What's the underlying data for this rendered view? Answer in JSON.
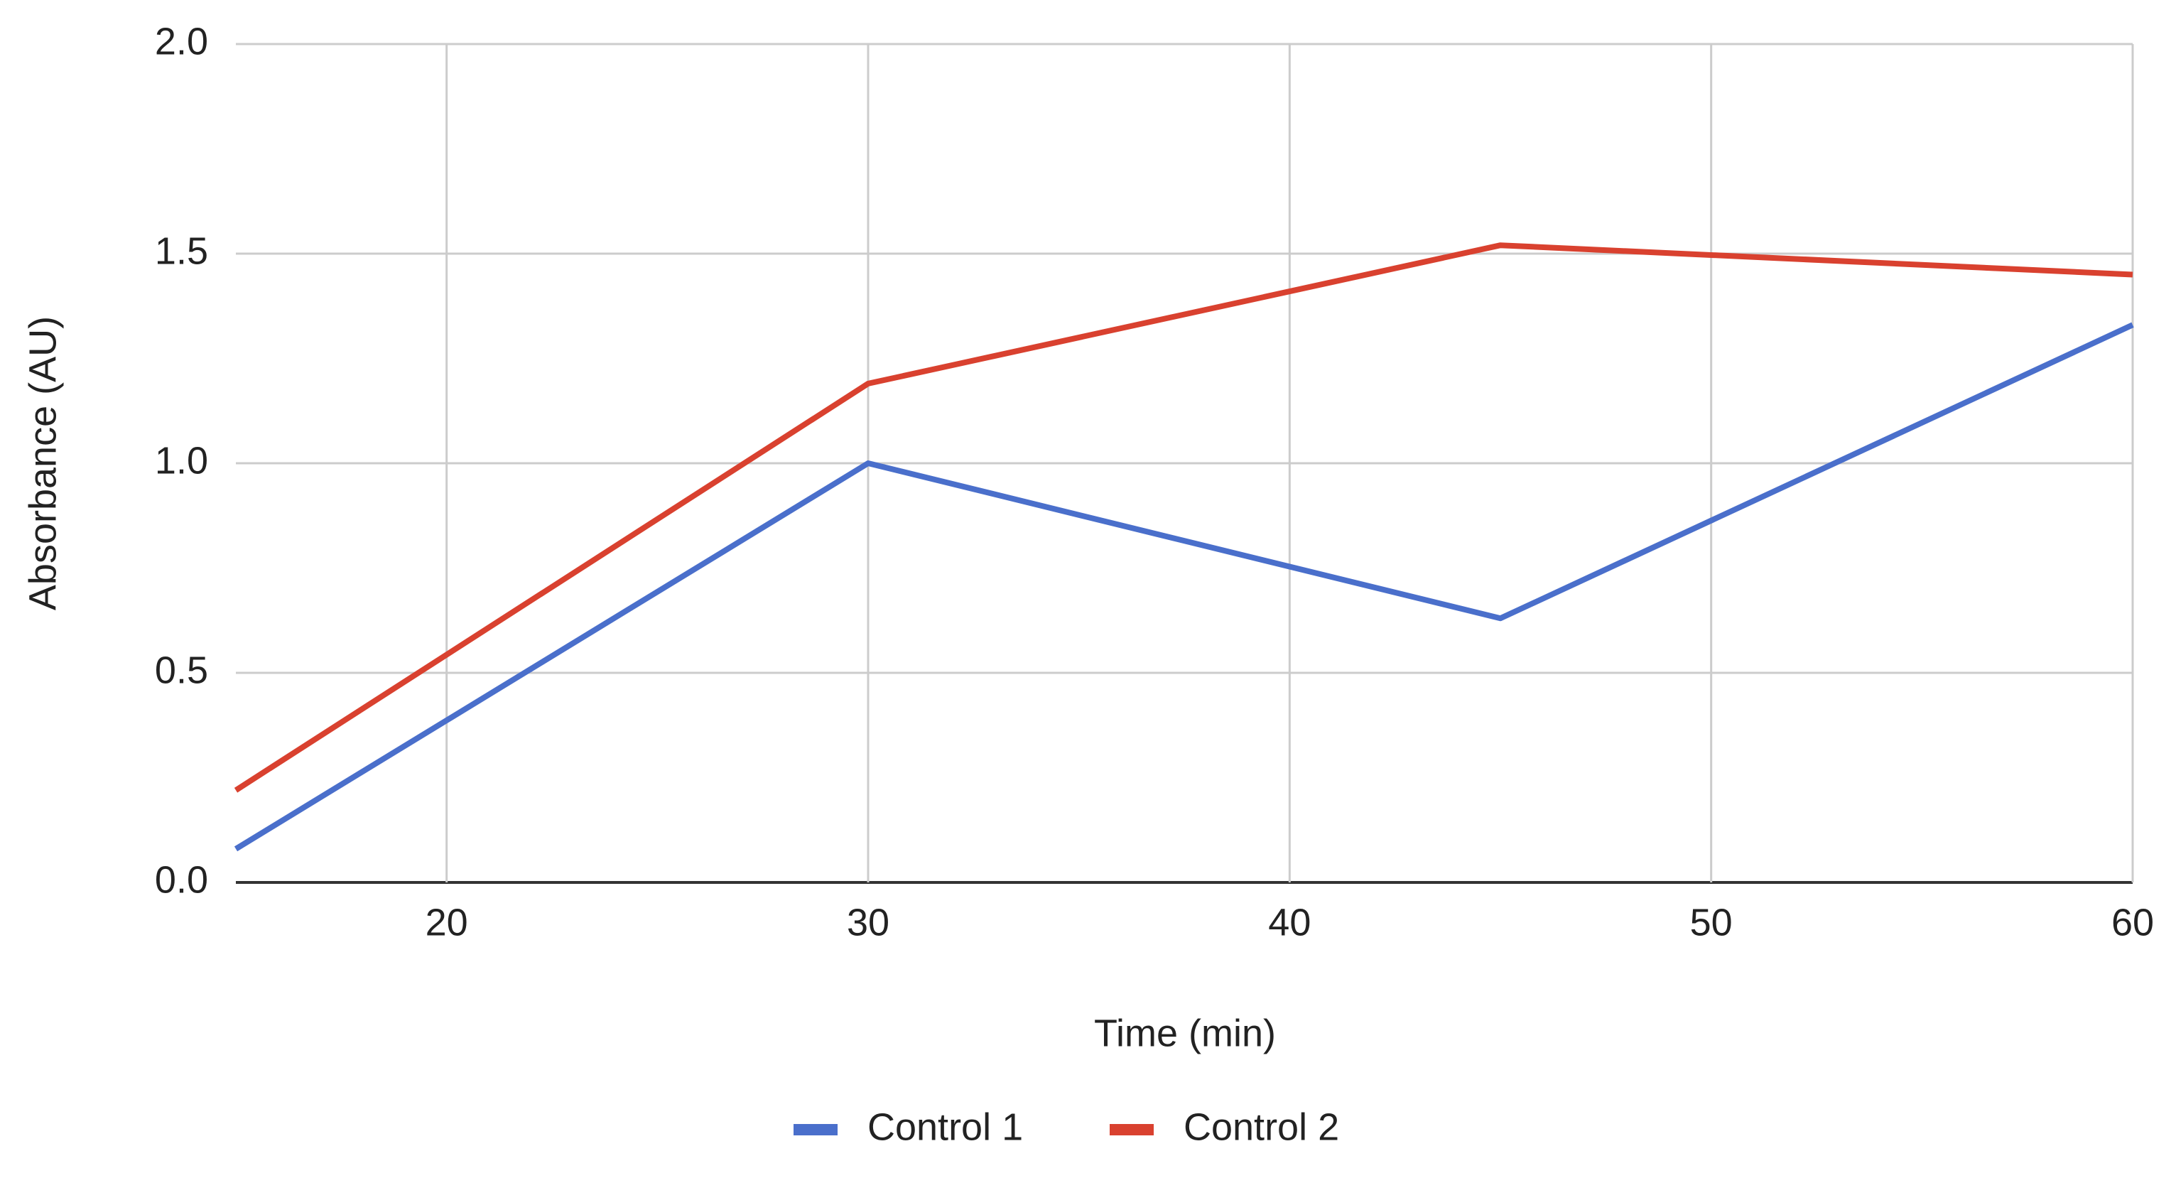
{
  "chart_data": {
    "type": "line",
    "x": [
      15,
      30,
      45,
      60
    ],
    "series": [
      {
        "name": "Control 1",
        "color": "#4a6fcb",
        "values": [
          0.08,
          1.0,
          0.63,
          1.33
        ]
      },
      {
        "name": "Control 2",
        "color": "#d9412f",
        "values": [
          0.22,
          1.19,
          1.52,
          1.45
        ]
      }
    ],
    "x_label": "Time (min)",
    "y_label": "Absorbance (AU)",
    "xlim": [
      15,
      60
    ],
    "xticks": [
      20,
      30,
      40,
      50,
      60
    ],
    "ylim": [
      0,
      2
    ],
    "yticks": [
      {
        "value": 0,
        "label": "0.0"
      },
      0.5,
      {
        "value": 1,
        "label": "1.0"
      },
      1.5,
      {
        "value": 2,
        "label": "2.0"
      }
    ],
    "grid": true,
    "legend": "bottom"
  }
}
